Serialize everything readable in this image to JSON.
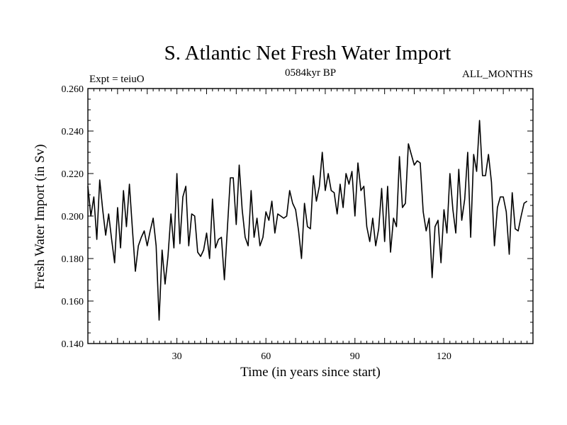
{
  "chart_data": {
    "type": "line",
    "title": "S. Atlantic Net Fresh Water Import",
    "subtitle_left": "Expt = teiuO",
    "subtitle_center": "0584kyr BP",
    "subtitle_right": "ALL_MONTHS",
    "xlabel": "Time (in years since start)",
    "ylabel": "Fresh Water Import (in Sv)",
    "xlim": [
      0,
      150
    ],
    "ylim": [
      0.14,
      0.26
    ],
    "x_ticks": [
      30,
      60,
      90,
      120
    ],
    "y_ticks": [
      "0.140",
      "0.160",
      "0.180",
      "0.200",
      "0.220",
      "0.240",
      "0.260"
    ],
    "series": [
      {
        "name": "Net Fresh Water Import",
        "x_start": 0,
        "x_step": 1,
        "values": [
          0.214,
          0.2,
          0.209,
          0.189,
          0.217,
          0.203,
          0.191,
          0.201,
          0.189,
          0.178,
          0.204,
          0.185,
          0.212,
          0.195,
          0.215,
          0.194,
          0.174,
          0.186,
          0.19,
          0.193,
          0.186,
          0.193,
          0.199,
          0.186,
          0.151,
          0.184,
          0.168,
          0.181,
          0.201,
          0.185,
          0.22,
          0.187,
          0.209,
          0.214,
          0.186,
          0.201,
          0.2,
          0.183,
          0.181,
          0.184,
          0.192,
          0.18,
          0.208,
          0.185,
          0.189,
          0.19,
          0.17,
          0.194,
          0.218,
          0.218,
          0.196,
          0.224,
          0.203,
          0.19,
          0.186,
          0.212,
          0.19,
          0.199,
          0.186,
          0.19,
          0.202,
          0.198,
          0.207,
          0.192,
          0.201,
          0.2,
          0.199,
          0.2,
          0.212,
          0.206,
          0.203,
          0.193,
          0.18,
          0.206,
          0.195,
          0.194,
          0.219,
          0.207,
          0.214,
          0.23,
          0.212,
          0.22,
          0.212,
          0.211,
          0.201,
          0.215,
          0.204,
          0.22,
          0.215,
          0.221,
          0.2,
          0.225,
          0.212,
          0.214,
          0.195,
          0.188,
          0.199,
          0.186,
          0.194,
          0.213,
          0.188,
          0.214,
          0.183,
          0.199,
          0.195,
          0.228,
          0.204,
          0.206,
          0.234,
          0.229,
          0.224,
          0.226,
          0.225,
          0.202,
          0.193,
          0.199,
          0.171,
          0.195,
          0.198,
          0.178,
          0.203,
          0.192,
          0.22,
          0.203,
          0.192,
          0.222,
          0.198,
          0.208,
          0.23,
          0.19,
          0.229,
          0.221,
          0.245,
          0.219,
          0.219,
          0.229,
          0.216,
          0.186,
          0.204,
          0.209,
          0.209,
          0.202,
          0.182,
          0.211,
          0.194,
          0.193,
          0.2,
          0.206,
          0.207
        ]
      }
    ]
  }
}
